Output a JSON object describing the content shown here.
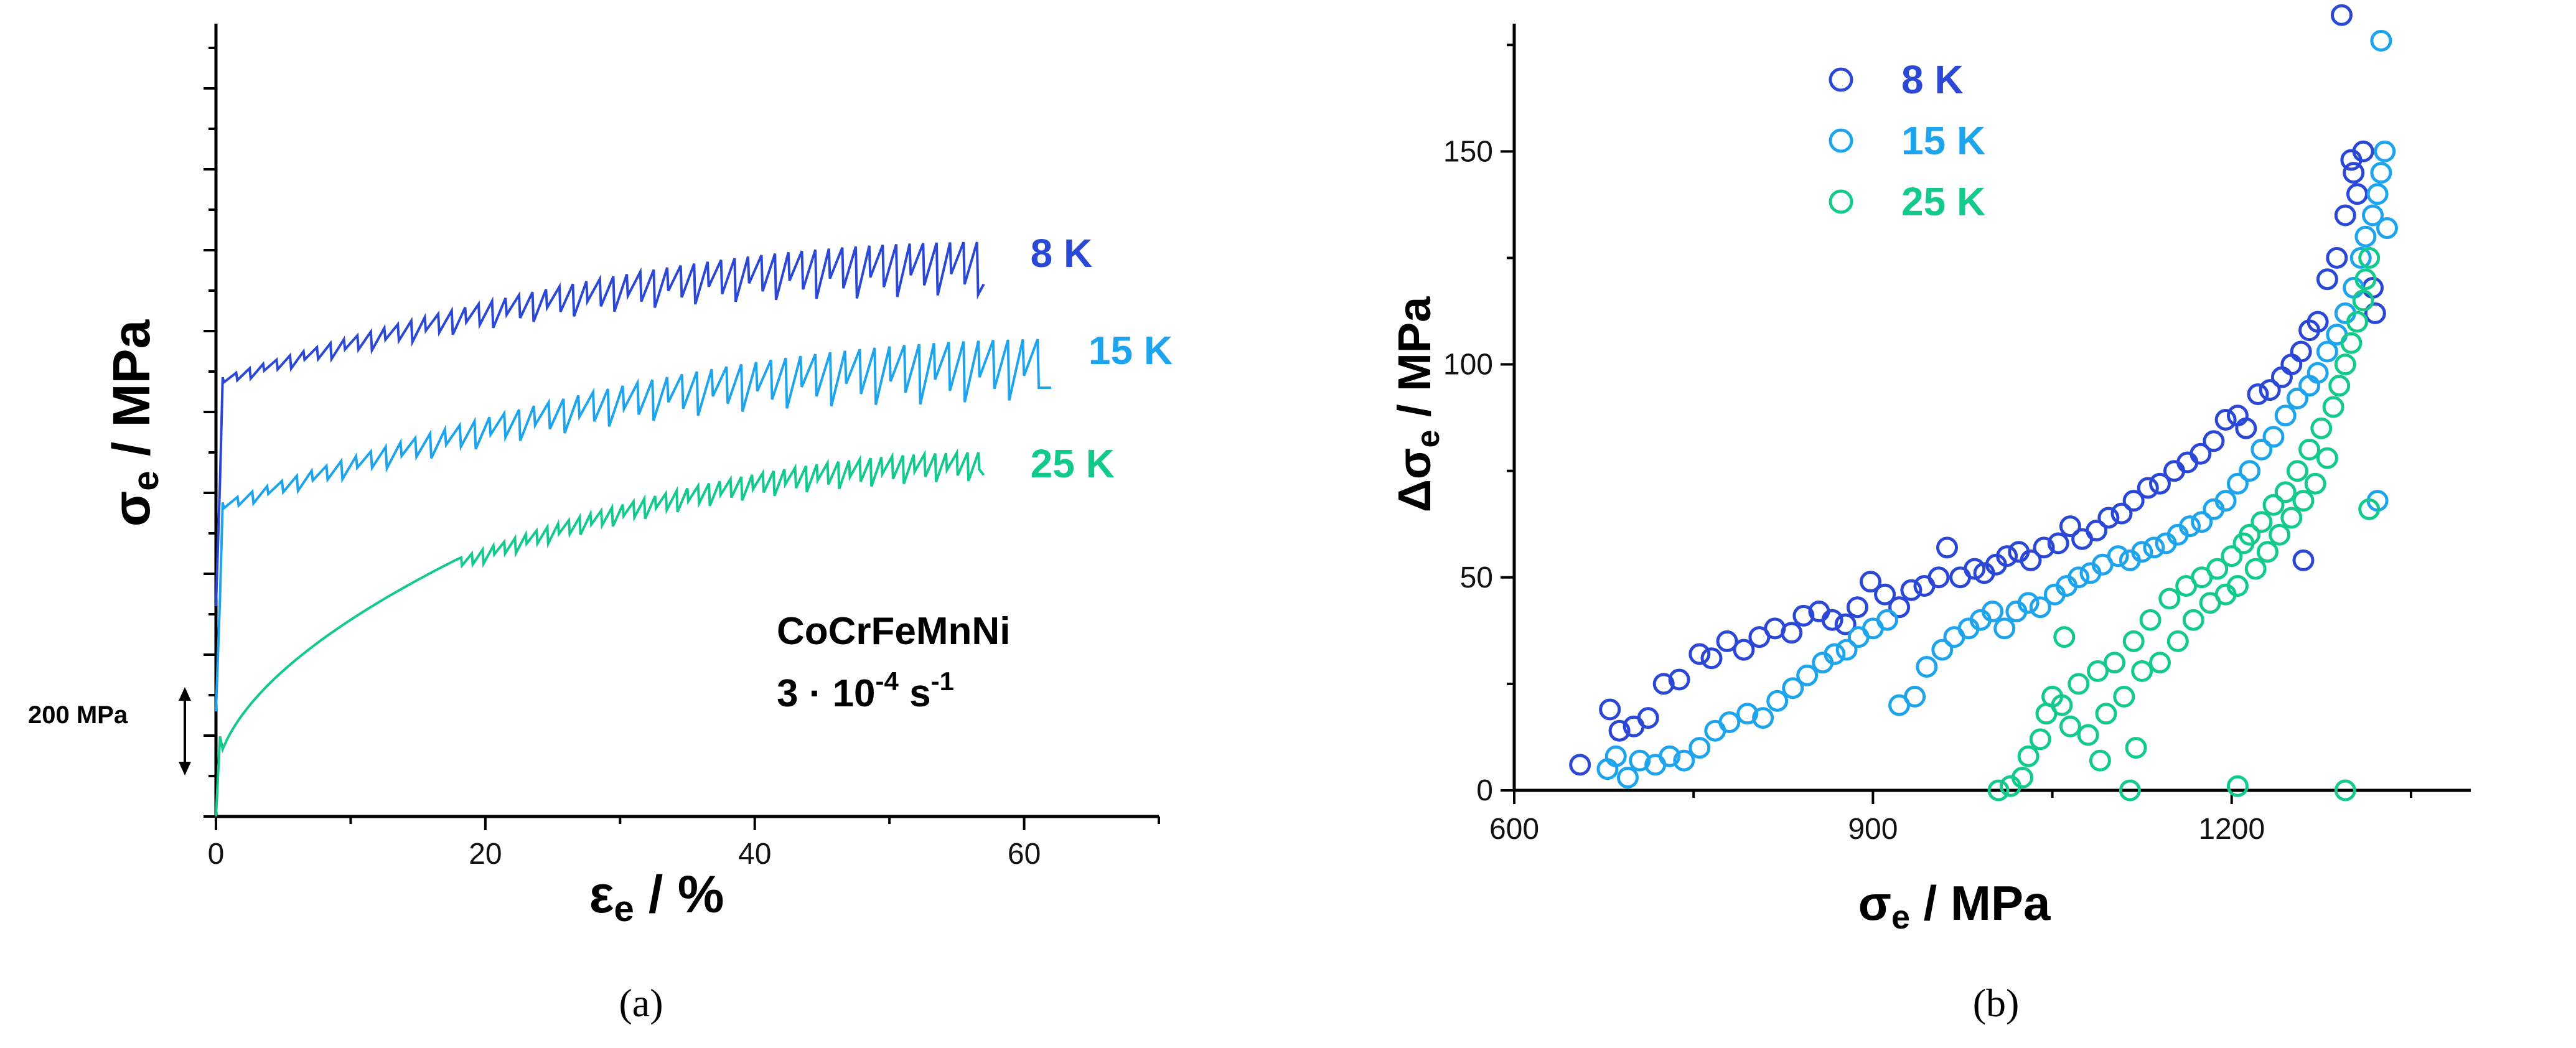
{
  "chart_data": [
    {
      "type": "line",
      "panel": "a",
      "caption": "(a)",
      "xlabel_main": "ε",
      "xlabel_sub": "e",
      "xlabel_unit": " / %",
      "ylabel_main": "σ",
      "ylabel_sub": "e",
      "ylabel_unit": " / MPa",
      "xlim": [
        0,
        70
      ],
      "xticks": [
        "0",
        "20",
        "40",
        "60"
      ],
      "scale_bar_label": "200 MPa",
      "scale_bar_mpa": 200,
      "annotation_line1": "CoCrFeMnNi",
      "annotation_rate": "3 · 10",
      "annotation_exp": "-4",
      "annotation_unit": " s",
      "annotation_unit_exp": "-1",
      "series": [
        {
          "name": "8 K",
          "color": "#2a47d6",
          "offset_mpa": 520,
          "yield_mpa": 960,
          "end_strain": 57,
          "max_mpa": 1300,
          "serration_start": 0.5,
          "serration_amp": 130,
          "serration_period": 1.0
        },
        {
          "name": "15 K",
          "color": "#1ea4ec",
          "offset_mpa": 260,
          "yield_mpa": 910,
          "end_strain": 62,
          "max_mpa": 1320,
          "serration_start": 0.5,
          "serration_amp": 150,
          "serration_period": 1.1
        },
        {
          "name": "25 K",
          "color": "#13c98c",
          "offset_mpa": 0,
          "yield_mpa": 760,
          "end_strain": 57,
          "max_mpa": 1300,
          "serration_start": 18,
          "serration_amp": 70,
          "serration_period": 0.8
        }
      ]
    },
    {
      "type": "scatter",
      "panel": "b",
      "caption": "(b)",
      "xlabel_main": "σ",
      "xlabel_sub": "e",
      "xlabel_unit": " / MPa",
      "ylabel_main": "Δσ",
      "ylabel_sub": "e",
      "ylabel_unit": " / MPa",
      "xlim": [
        600,
        1400
      ],
      "ylim": [
        0,
        180
      ],
      "xticks": [
        600,
        900,
        1200
      ],
      "yticks": [
        0,
        50,
        100,
        150
      ],
      "series": [
        {
          "name": "8 K",
          "color": "#2a47d6",
          "points": [
            [
              655,
              6
            ],
            [
              680,
              19
            ],
            [
              688,
              14
            ],
            [
              700,
              15
            ],
            [
              712,
              17
            ],
            [
              725,
              25
            ],
            [
              738,
              26
            ],
            [
              755,
              32
            ],
            [
              765,
              31
            ],
            [
              778,
              35
            ],
            [
              792,
              33
            ],
            [
              805,
              36
            ],
            [
              818,
              38
            ],
            [
              832,
              37
            ],
            [
              842,
              41
            ],
            [
              855,
              42
            ],
            [
              866,
              40
            ],
            [
              877,
              39
            ],
            [
              887,
              43
            ],
            [
              898,
              49
            ],
            [
              910,
              46
            ],
            [
              922,
              43
            ],
            [
              932,
              47
            ],
            [
              943,
              48
            ],
            [
              955,
              50
            ],
            [
              962,
              57
            ],
            [
              973,
              50
            ],
            [
              985,
              52
            ],
            [
              993,
              51
            ],
            [
              1003,
              53
            ],
            [
              1012,
              55
            ],
            [
              1022,
              56
            ],
            [
              1032,
              54
            ],
            [
              1043,
              57
            ],
            [
              1055,
              58
            ],
            [
              1065,
              62
            ],
            [
              1075,
              59
            ],
            [
              1087,
              61
            ],
            [
              1097,
              64
            ],
            [
              1108,
              65
            ],
            [
              1118,
              68
            ],
            [
              1130,
              71
            ],
            [
              1140,
              72
            ],
            [
              1152,
              75
            ],
            [
              1163,
              77
            ],
            [
              1174,
              79
            ],
            [
              1185,
              82
            ],
            [
              1195,
              87
            ],
            [
              1205,
              88
            ],
            [
              1212,
              85
            ],
            [
              1222,
              93
            ],
            [
              1232,
              94
            ],
            [
              1242,
              97
            ],
            [
              1250,
              100
            ],
            [
              1258,
              103
            ],
            [
              1265,
              108
            ],
            [
              1272,
              110
            ],
            [
              1280,
              120
            ],
            [
              1288,
              125
            ],
            [
              1295,
              135
            ],
            [
              1300,
              148
            ],
            [
              1305,
              140
            ],
            [
              1310,
              150
            ],
            [
              1318,
              118
            ],
            [
              1320,
              112
            ],
            [
              1292,
              182
            ],
            [
              1302,
              145
            ],
            [
              1260,
              54
            ]
          ]
        },
        {
          "name": "15 K",
          "color": "#1ea4ec",
          "points": [
            [
              678,
              5
            ],
            [
              685,
              8
            ],
            [
              695,
              3
            ],
            [
              705,
              7
            ],
            [
              718,
              6
            ],
            [
              730,
              8
            ],
            [
              742,
              7
            ],
            [
              755,
              10
            ],
            [
              768,
              14
            ],
            [
              780,
              16
            ],
            [
              795,
              18
            ],
            [
              808,
              17
            ],
            [
              820,
              21
            ],
            [
              833,
              24
            ],
            [
              845,
              27
            ],
            [
              858,
              30
            ],
            [
              868,
              32
            ],
            [
              878,
              33
            ],
            [
              888,
              36
            ],
            [
              900,
              38
            ],
            [
              912,
              40
            ],
            [
              922,
              20
            ],
            [
              935,
              22
            ],
            [
              945,
              29
            ],
            [
              958,
              33
            ],
            [
              968,
              36
            ],
            [
              980,
              38
            ],
            [
              990,
              40
            ],
            [
              1000,
              42
            ],
            [
              1010,
              38
            ],
            [
              1020,
              42
            ],
            [
              1030,
              44
            ],
            [
              1040,
              43
            ],
            [
              1052,
              46
            ],
            [
              1062,
              48
            ],
            [
              1072,
              50
            ],
            [
              1082,
              51
            ],
            [
              1092,
              53
            ],
            [
              1105,
              55
            ],
            [
              1115,
              54
            ],
            [
              1125,
              56
            ],
            [
              1135,
              57
            ],
            [
              1145,
              58
            ],
            [
              1155,
              60
            ],
            [
              1165,
              62
            ],
            [
              1175,
              63
            ],
            [
              1185,
              66
            ],
            [
              1195,
              68
            ],
            [
              1205,
              72
            ],
            [
              1215,
              75
            ],
            [
              1225,
              80
            ],
            [
              1235,
              83
            ],
            [
              1245,
              88
            ],
            [
              1255,
              92
            ],
            [
              1265,
              95
            ],
            [
              1272,
              98
            ],
            [
              1280,
              103
            ],
            [
              1288,
              107
            ],
            [
              1295,
              112
            ],
            [
              1302,
              118
            ],
            [
              1308,
              125
            ],
            [
              1312,
              130
            ],
            [
              1318,
              135
            ],
            [
              1322,
              140
            ],
            [
              1325,
              145
            ],
            [
              1328,
              150
            ],
            [
              1330,
              132
            ],
            [
              1325,
              176
            ],
            [
              1322,
              68
            ]
          ]
        },
        {
          "name": "25 K",
          "color": "#13c98c",
          "points": [
            [
              1005,
              0
            ],
            [
              1015,
              1
            ],
            [
              1025,
              3
            ],
            [
              1030,
              8
            ],
            [
              1040,
              12
            ],
            [
              1045,
              18
            ],
            [
              1050,
              22
            ],
            [
              1058,
              20
            ],
            [
              1065,
              15
            ],
            [
              1072,
              25
            ],
            [
              1080,
              13
            ],
            [
              1088,
              28
            ],
            [
              1095,
              18
            ],
            [
              1102,
              30
            ],
            [
              1110,
              22
            ],
            [
              1118,
              35
            ],
            [
              1125,
              28
            ],
            [
              1132,
              40
            ],
            [
              1140,
              30
            ],
            [
              1148,
              45
            ],
            [
              1155,
              35
            ],
            [
              1162,
              48
            ],
            [
              1168,
              40
            ],
            [
              1175,
              50
            ],
            [
              1182,
              44
            ],
            [
              1188,
              52
            ],
            [
              1195,
              46
            ],
            [
              1200,
              55
            ],
            [
              1205,
              48
            ],
            [
              1210,
              58
            ],
            [
              1215,
              60
            ],
            [
              1220,
              52
            ],
            [
              1225,
              63
            ],
            [
              1230,
              56
            ],
            [
              1235,
              67
            ],
            [
              1240,
              60
            ],
            [
              1245,
              70
            ],
            [
              1250,
              64
            ],
            [
              1255,
              75
            ],
            [
              1260,
              68
            ],
            [
              1265,
              80
            ],
            [
              1270,
              72
            ],
            [
              1275,
              85
            ],
            [
              1280,
              78
            ],
            [
              1285,
              90
            ],
            [
              1290,
              95
            ],
            [
              1295,
              100
            ],
            [
              1300,
              105
            ],
            [
              1305,
              110
            ],
            [
              1310,
              115
            ],
            [
              1312,
              120
            ],
            [
              1315,
              66
            ],
            [
              1315,
              125
            ],
            [
              1205,
              1
            ],
            [
              1115,
              0
            ],
            [
              1295,
              0
            ],
            [
              1060,
              36
            ],
            [
              1120,
              10
            ],
            [
              1090,
              7
            ]
          ]
        }
      ]
    }
  ]
}
